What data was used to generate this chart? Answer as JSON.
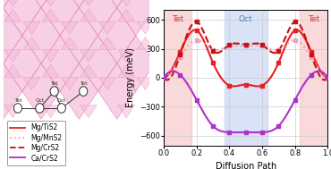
{
  "xlabel": "Diffusion Path",
  "ylabel": "Energy (meV)",
  "xlim": [
    0.0,
    1.0
  ],
  "ylim": [
    -700,
    700
  ],
  "yticks": [
    -600,
    -300,
    0,
    300,
    600
  ],
  "xticks": [
    0.0,
    0.2,
    0.4,
    0.6,
    0.8,
    1.0
  ],
  "tet_color": "#f5c0c0",
  "oct_color": "#c0d0f0",
  "tet_label_color": "#e03030",
  "oct_label_color": "#5080c0",
  "tet_span1": [
    0.0,
    0.17
  ],
  "oct_span": [
    0.37,
    0.63
  ],
  "tet_span2": [
    0.83,
    1.0
  ],
  "series": [
    {
      "name": "Mg/TiS2",
      "color": "#e82020",
      "linestyle": "-",
      "linewidth": 1.5,
      "marker": "s",
      "markersize": 3.5,
      "points_x": [
        0.0,
        0.1,
        0.2,
        0.3,
        0.4,
        0.5,
        0.6,
        0.7,
        0.8,
        0.9,
        1.0
      ],
      "points_y": [
        0,
        270,
        490,
        155,
        -80,
        -70,
        -80,
        155,
        490,
        270,
        0
      ]
    },
    {
      "name": "Mg/MnS2",
      "color": "#f0a0b8",
      "linestyle": ":",
      "linewidth": 1.5,
      "marker": "s",
      "markersize": 3.5,
      "points_x": [
        0.0,
        0.1,
        0.2,
        0.3,
        0.4,
        0.5,
        0.6,
        0.7,
        0.8,
        0.9,
        1.0
      ],
      "points_y": [
        0,
        210,
        390,
        290,
        330,
        330,
        330,
        290,
        390,
        210,
        0
      ]
    },
    {
      "name": "Mg/CrS2",
      "color": "#cc1010",
      "linestyle": "--",
      "linewidth": 1.5,
      "marker": "s",
      "markersize": 3.5,
      "points_x": [
        0.0,
        0.1,
        0.2,
        0.3,
        0.4,
        0.5,
        0.6,
        0.7,
        0.8,
        0.9,
        1.0
      ],
      "points_y": [
        0,
        240,
        580,
        280,
        340,
        345,
        340,
        280,
        580,
        240,
        0
      ]
    },
    {
      "name": "Ca/CrS2",
      "color": "#b030c8",
      "linestyle": "-",
      "linewidth": 1.5,
      "marker": "s",
      "markersize": 3.5,
      "points_x": [
        0.0,
        0.1,
        0.2,
        0.3,
        0.4,
        0.5,
        0.6,
        0.7,
        0.8,
        0.9,
        1.0
      ],
      "points_y": [
        0,
        30,
        -230,
        -500,
        -565,
        -565,
        -565,
        -500,
        -230,
        30,
        0
      ]
    }
  ],
  "bg_color": "white",
  "grid_color": "#cccccc",
  "fig_width": 3.7,
  "fig_height": 1.89,
  "spinel_color": "#f5b8d8",
  "spinel_edge": "#e080b0",
  "node_color": "white",
  "node_edge": "#303030",
  "legend_fontsize": 5.5,
  "axis_fontsize": 7,
  "tick_fontsize": 6
}
